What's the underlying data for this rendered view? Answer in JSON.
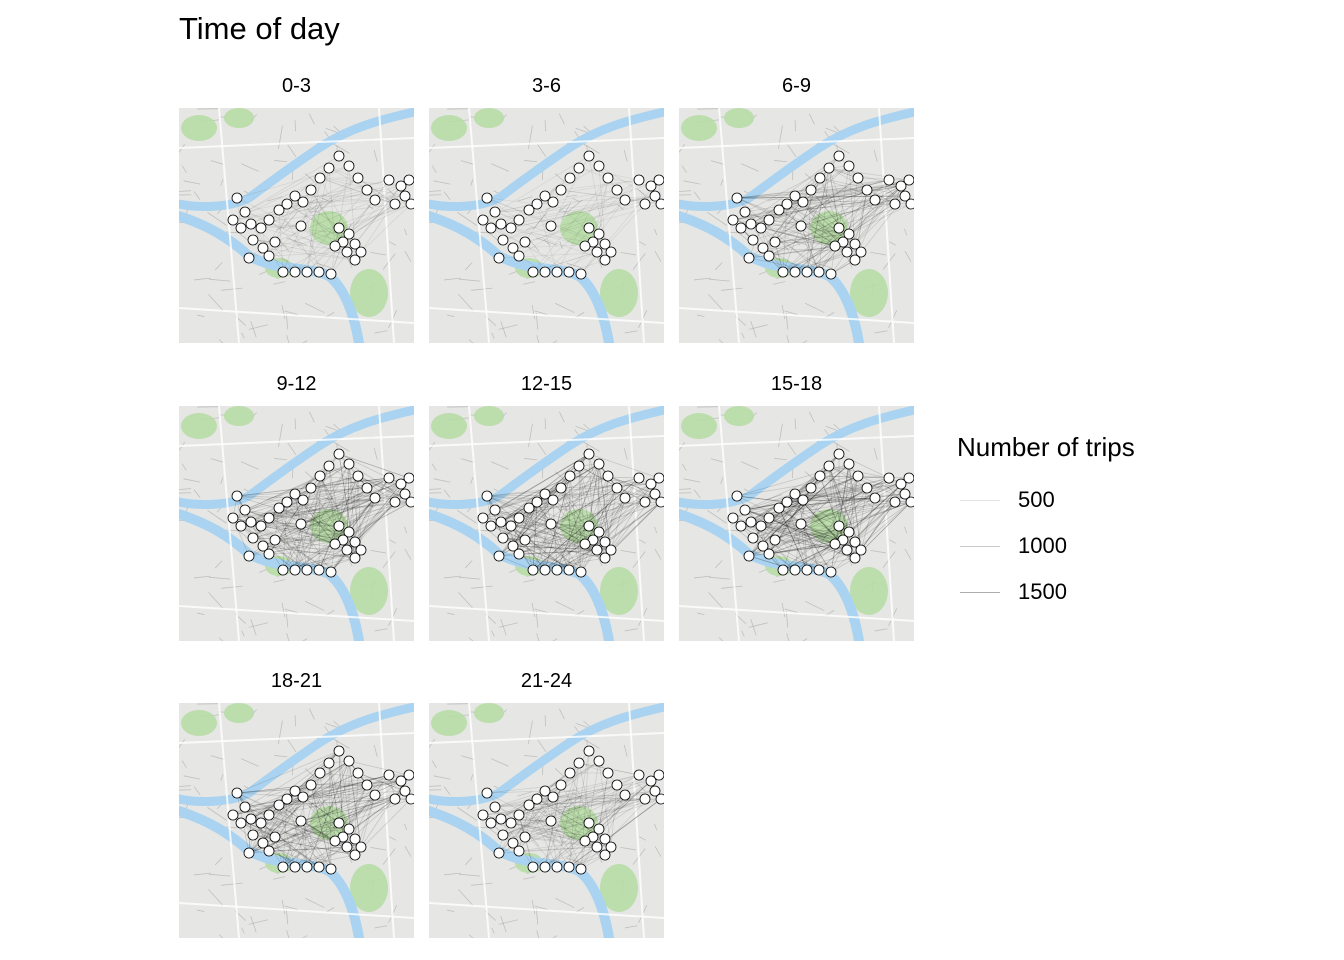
{
  "title": "Time of day",
  "panels": [
    {
      "label": "0-3",
      "trip_density": 0.3
    },
    {
      "label": "3-6",
      "trip_density": 0.18
    },
    {
      "label": "6-9",
      "trip_density": 0.72
    },
    {
      "label": "9-12",
      "trip_density": 0.92
    },
    {
      "label": "12-15",
      "trip_density": 0.95
    },
    {
      "label": "15-18",
      "trip_density": 1.0
    },
    {
      "label": "18-21",
      "trip_density": 0.85
    },
    {
      "label": "21-24",
      "trip_density": 0.55
    }
  ],
  "legend": {
    "title": "Number of trips",
    "items": [
      {
        "label": "500",
        "color": "#e4e4e4"
      },
      {
        "label": "1000",
        "color": "#cacaca"
      },
      {
        "label": "1500",
        "color": "#aeaeae"
      }
    ]
  },
  "colors": {
    "river": "#a9d3f0",
    "park": "#b7dca5",
    "land": "#e6e6e4",
    "station_fill": "#ffffff",
    "station_stroke": "#000000",
    "trip_line": "#000000"
  }
}
